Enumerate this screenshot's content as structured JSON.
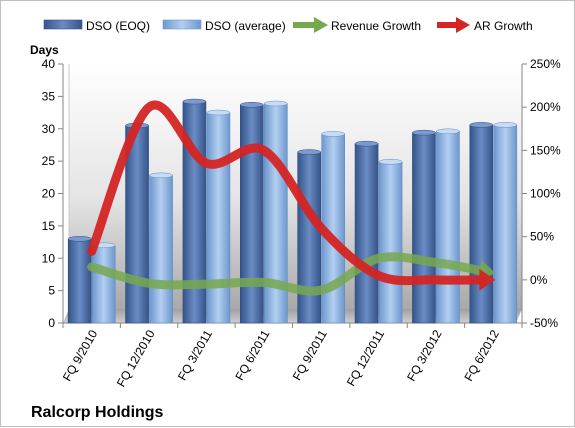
{
  "chart_data": {
    "type": "bar",
    "title": "Ralcorp Holdings",
    "ylabel": "Days",
    "ylim": [
      0,
      40
    ],
    "y2lim": [
      -50,
      250
    ],
    "yticks": [
      "0",
      "5",
      "10",
      "15",
      "20",
      "25",
      "30",
      "35",
      "40"
    ],
    "y2ticks": [
      "-50%",
      "0%",
      "50%",
      "100%",
      "150%",
      "200%",
      "250%"
    ],
    "categories": [
      "FQ 9/2010",
      "FQ 12/2010",
      "FQ 3/2011",
      "FQ 6/2011",
      "FQ 9/2011",
      "FQ 12/2011",
      "FQ 3/2012",
      "FQ 6/2012"
    ],
    "series": [
      {
        "name": "DSO (EOQ)",
        "kind": "bar",
        "axis": "left",
        "color": "#4f6fa3",
        "values": [
          13.0,
          30.5,
          34.2,
          33.7,
          26.4,
          27.7,
          29.4,
          30.6
        ]
      },
      {
        "name": "DSO (average)",
        "kind": "bar",
        "axis": "left",
        "color": "#8eb4e3",
        "values": [
          12.0,
          22.8,
          32.5,
          33.9,
          29.2,
          24.9,
          29.6,
          30.6
        ]
      },
      {
        "name": "Revenue Growth",
        "kind": "line",
        "axis": "right",
        "unit": "%",
        "color": "#77a84f",
        "values": [
          15,
          -4,
          -5,
          -3,
          -12,
          25,
          20,
          8
        ]
      },
      {
        "name": "AR Growth",
        "kind": "line",
        "axis": "right",
        "unit": "%",
        "color": "#d42424",
        "values": [
          33,
          200,
          135,
          150,
          60,
          5,
          0,
          0
        ]
      }
    ],
    "legend_position": "top",
    "grid": false
  }
}
